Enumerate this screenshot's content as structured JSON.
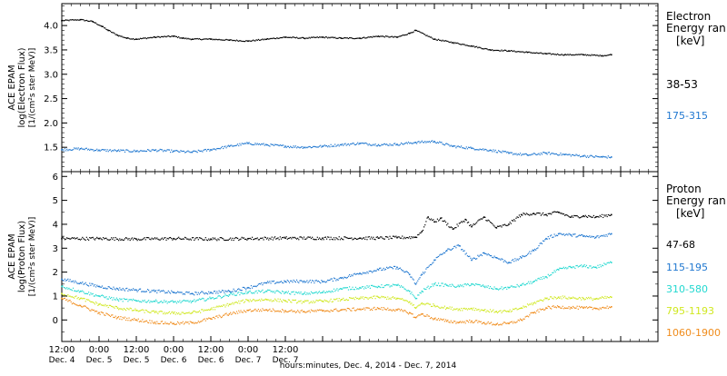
{
  "chart_data": [
    {
      "type": "scatter",
      "instrument_label": "ACE EPAM",
      "ylabel": "log(Electron Flux)",
      "ylabel_units": "[1/(cm²s ster MeV)]",
      "legend_title": "Electron",
      "legend_subtitle": "Energy ran",
      "legend_units": "[keV]",
      "ylim": [
        1.0,
        4.45
      ],
      "yticks": [
        "1.5",
        "2.0",
        "2.5",
        "3.0",
        "3.5",
        "4.0"
      ],
      "x_unit": "hours",
      "series": [
        {
          "name": "38-53",
          "color": "#000000",
          "x": [
            0,
            6,
            10,
            13,
            15,
            18,
            21,
            24,
            30,
            36,
            39,
            42,
            48,
            54,
            60,
            66,
            72,
            78,
            84,
            90,
            96,
            102,
            108,
            112,
            114,
            120,
            126,
            132,
            138,
            144,
            150,
            156,
            162,
            168,
            174,
            177
          ],
          "y": [
            4.1,
            4.12,
            4.08,
            3.98,
            3.9,
            3.8,
            3.74,
            3.72,
            3.76,
            3.78,
            3.74,
            3.72,
            3.72,
            3.7,
            3.68,
            3.72,
            3.76,
            3.74,
            3.76,
            3.74,
            3.74,
            3.78,
            3.76,
            3.84,
            3.9,
            3.72,
            3.65,
            3.58,
            3.5,
            3.48,
            3.45,
            3.42,
            3.4,
            3.4,
            3.38,
            3.4
          ]
        },
        {
          "name": "175-315",
          "color": "#1f77d0",
          "x": [
            0,
            6,
            12,
            18,
            24,
            30,
            36,
            42,
            48,
            54,
            60,
            66,
            72,
            78,
            84,
            90,
            96,
            102,
            108,
            114,
            120,
            126,
            132,
            138,
            144,
            150,
            156,
            162,
            168,
            174,
            177
          ],
          "y": [
            1.45,
            1.47,
            1.44,
            1.43,
            1.42,
            1.44,
            1.42,
            1.4,
            1.45,
            1.52,
            1.58,
            1.55,
            1.52,
            1.5,
            1.52,
            1.55,
            1.58,
            1.55,
            1.56,
            1.6,
            1.62,
            1.52,
            1.48,
            1.44,
            1.38,
            1.34,
            1.38,
            1.35,
            1.32,
            1.3,
            1.3
          ]
        }
      ]
    },
    {
      "type": "scatter",
      "instrument_label": "ACE EPAM",
      "ylabel": "log(Proton Flux)",
      "ylabel_units": "[1/(cm²s ster MeV)]",
      "legend_title": "Proton",
      "legend_subtitle": "Energy ran",
      "legend_units": "[keV]",
      "ylim": [
        -0.9,
        6.2
      ],
      "yticks": [
        "0",
        "1",
        "2",
        "3",
        "4",
        "5",
        "6"
      ],
      "x_unit": "hours",
      "series": [
        {
          "name": "47-68",
          "color": "#000000",
          "x": [
            0,
            12,
            24,
            36,
            48,
            60,
            72,
            84,
            96,
            102,
            108,
            114,
            116,
            118,
            120,
            122,
            126,
            130,
            132,
            136,
            140,
            144,
            148,
            152,
            156,
            160,
            164,
            168,
            172,
            177
          ],
          "y": [
            3.4,
            3.4,
            3.38,
            3.4,
            3.38,
            3.4,
            3.42,
            3.42,
            3.42,
            3.42,
            3.44,
            3.46,
            3.7,
            4.3,
            4.1,
            4.25,
            3.8,
            4.2,
            3.9,
            4.3,
            3.85,
            4.0,
            4.4,
            4.45,
            4.4,
            4.5,
            4.3,
            4.35,
            4.3,
            4.4
          ]
        },
        {
          "name": "115-195",
          "color": "#1f77d0",
          "x": [
            0,
            6,
            12,
            18,
            24,
            30,
            36,
            42,
            48,
            54,
            60,
            66,
            72,
            78,
            84,
            90,
            96,
            102,
            108,
            112,
            114,
            116,
            120,
            124,
            128,
            132,
            136,
            140,
            144,
            148,
            152,
            156,
            160,
            164,
            168,
            172,
            177
          ],
          "y": [
            1.7,
            1.55,
            1.4,
            1.3,
            1.25,
            1.2,
            1.15,
            1.1,
            1.15,
            1.2,
            1.35,
            1.55,
            1.6,
            1.62,
            1.6,
            1.75,
            1.95,
            2.1,
            2.2,
            1.9,
            1.5,
            1.9,
            2.5,
            2.9,
            3.1,
            2.5,
            2.8,
            2.6,
            2.4,
            2.6,
            2.9,
            3.4,
            3.6,
            3.55,
            3.5,
            3.45,
            3.6
          ]
        },
        {
          "name": "310-580",
          "color": "#22d8d0",
          "x": [
            0,
            6,
            12,
            18,
            24,
            30,
            36,
            42,
            48,
            54,
            60,
            66,
            72,
            78,
            84,
            90,
            96,
            102,
            108,
            112,
            114,
            116,
            120,
            124,
            128,
            132,
            136,
            140,
            144,
            148,
            152,
            156,
            160,
            164,
            168,
            172,
            177
          ],
          "y": [
            1.4,
            1.2,
            1.0,
            0.85,
            0.8,
            0.78,
            0.75,
            0.78,
            0.9,
            1.05,
            1.15,
            1.2,
            1.15,
            1.1,
            1.15,
            1.3,
            1.35,
            1.4,
            1.45,
            1.2,
            0.9,
            1.2,
            1.5,
            1.45,
            1.4,
            1.5,
            1.4,
            1.3,
            1.35,
            1.45,
            1.6,
            1.8,
            2.1,
            2.2,
            2.25,
            2.2,
            2.4
          ]
        },
        {
          "name": "795-1193",
          "color": "#d0e820",
          "x": [
            0,
            6,
            12,
            18,
            24,
            30,
            36,
            42,
            48,
            54,
            60,
            66,
            72,
            78,
            84,
            90,
            96,
            102,
            108,
            112,
            114,
            116,
            120,
            124,
            128,
            132,
            136,
            140,
            144,
            148,
            152,
            156,
            160,
            164,
            168,
            172,
            177
          ],
          "y": [
            1.1,
            0.9,
            0.65,
            0.5,
            0.4,
            0.32,
            0.28,
            0.3,
            0.45,
            0.65,
            0.82,
            0.85,
            0.8,
            0.75,
            0.78,
            0.85,
            0.9,
            0.95,
            0.9,
            0.75,
            0.5,
            0.7,
            0.6,
            0.5,
            0.45,
            0.48,
            0.4,
            0.35,
            0.35,
            0.5,
            0.7,
            0.9,
            0.95,
            0.92,
            0.9,
            0.88,
            0.95
          ]
        },
        {
          "name": "1060-1900",
          "color": "#f08c1c",
          "x": [
            0,
            6,
            12,
            18,
            24,
            30,
            36,
            42,
            48,
            54,
            60,
            66,
            72,
            78,
            84,
            90,
            96,
            102,
            108,
            112,
            114,
            116,
            120,
            124,
            128,
            132,
            136,
            140,
            144,
            148,
            152,
            156,
            160,
            164,
            168,
            172,
            177
          ],
          "y": [
            0.9,
            0.6,
            0.3,
            0.1,
            0.0,
            -0.1,
            -0.15,
            -0.12,
            0.05,
            0.25,
            0.4,
            0.42,
            0.38,
            0.35,
            0.38,
            0.42,
            0.45,
            0.48,
            0.42,
            0.3,
            0.1,
            0.25,
            0.05,
            -0.05,
            -0.1,
            -0.05,
            -0.12,
            -0.18,
            -0.15,
            0.0,
            0.3,
            0.5,
            0.55,
            0.52,
            0.5,
            0.48,
            0.55
          ]
        }
      ]
    }
  ],
  "x_axis": {
    "range_hours": [
      0,
      192
    ],
    "ticks": [
      {
        "h": 0,
        "time": "12:00",
        "date": "Dec. 4"
      },
      {
        "h": 12,
        "time": "0:00",
        "date": "Dec. 5"
      },
      {
        "h": 24,
        "time": "12:00",
        "date": "Dec. 5"
      },
      {
        "h": 36,
        "time": "0:00",
        "date": "Dec. 6"
      },
      {
        "h": 48,
        "time": "12:00",
        "date": "Dec. 6"
      },
      {
        "h": 60,
        "time": "0:00",
        "date": "Dec. 7"
      },
      {
        "h": 72,
        "time": "12:00",
        "date": "Dec. 7"
      }
    ],
    "caption": "hours:minutes, Dec. 4, 2014 - Dec. 7, 2014"
  }
}
